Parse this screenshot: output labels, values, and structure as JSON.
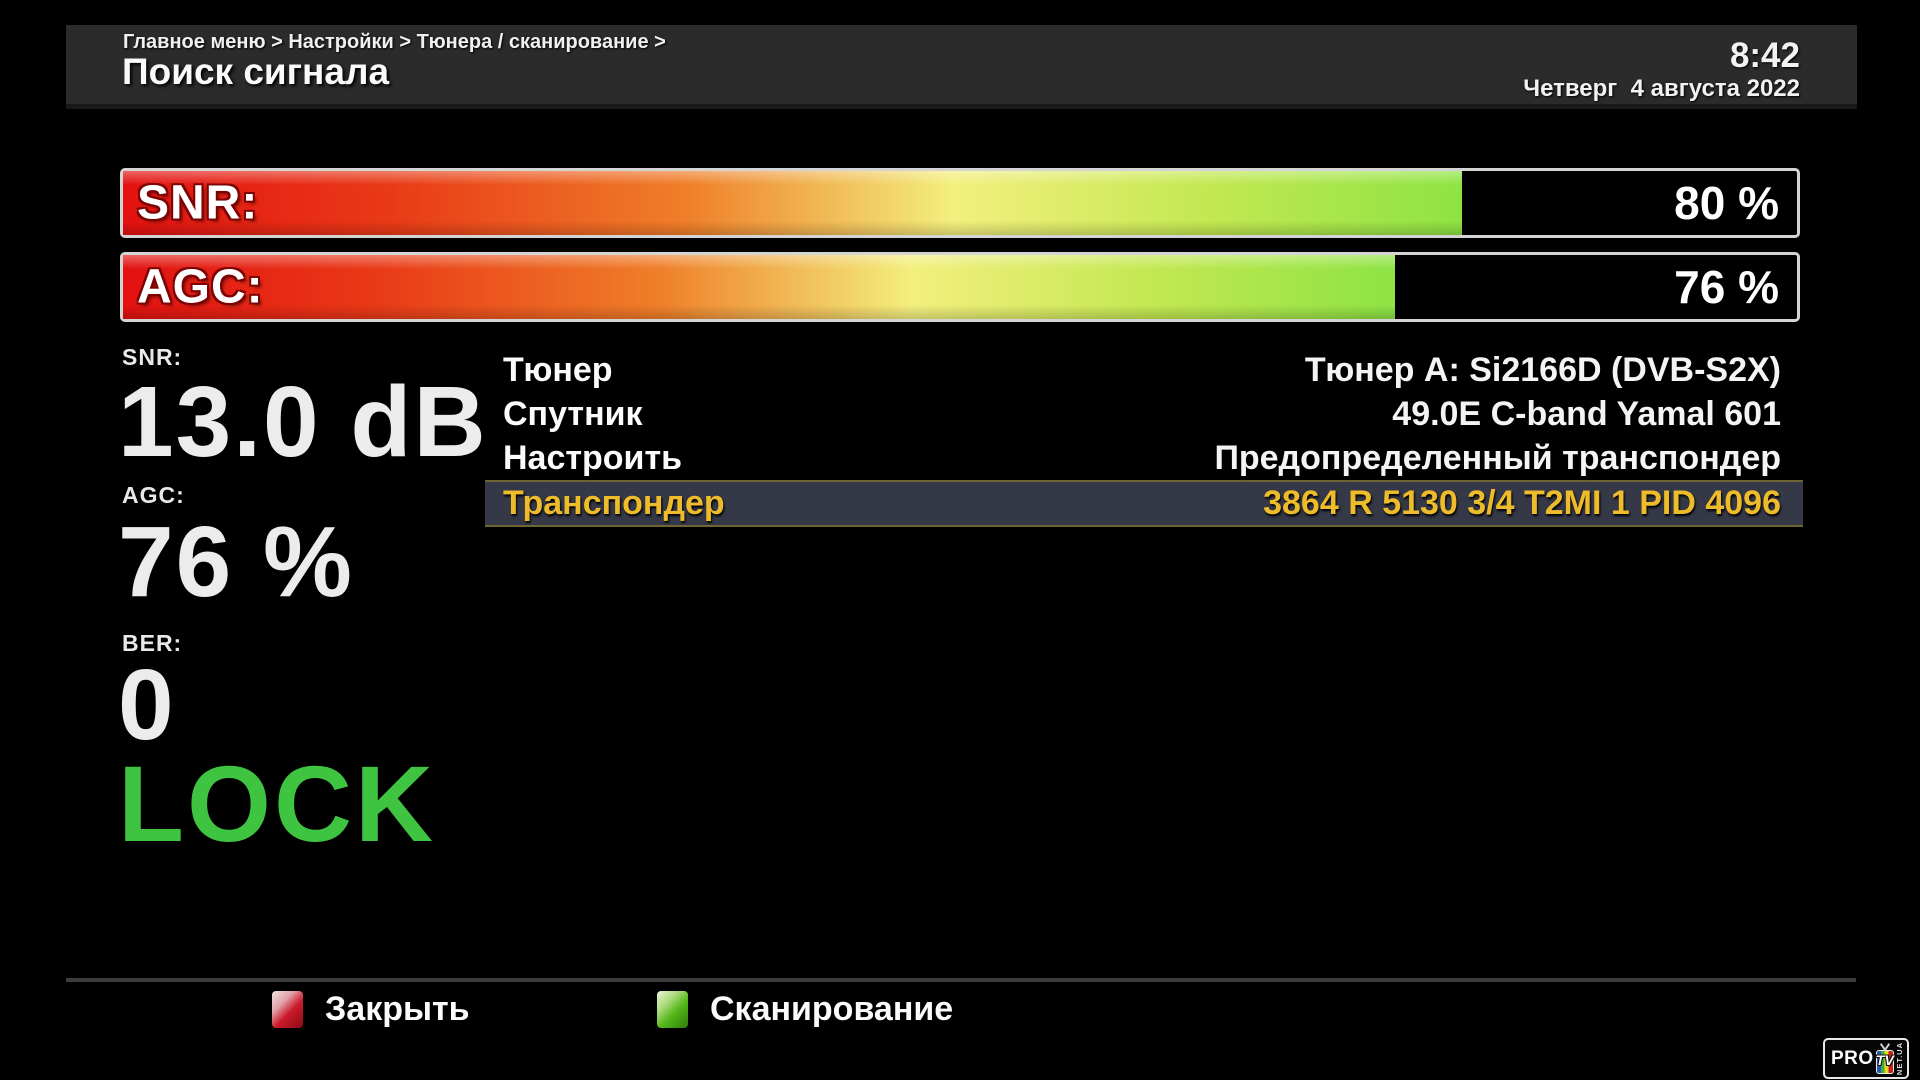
{
  "header": {
    "breadcrumb": "Главное меню > Настройки > Тюнера / сканирование >",
    "title": "Поиск сигнала",
    "time": "8:42",
    "date": "Четверг  4 августа 2022"
  },
  "gauges": {
    "snr": {
      "label": "SNR:",
      "percent": 80,
      "value_text": "80 %"
    },
    "agc": {
      "label": "AGC:",
      "percent": 76,
      "value_text": "76 %"
    }
  },
  "readings": {
    "snr": {
      "label": "SNR:",
      "value": "13.0 dB"
    },
    "agc": {
      "label": "AGC:",
      "value": "76 %"
    },
    "ber": {
      "label": "BER:",
      "value": "0"
    }
  },
  "lock_status": "LOCK",
  "settings": [
    {
      "label": "Тюнер",
      "value": "Тюнер A: Si2166D (DVB-S2X)",
      "selected": false
    },
    {
      "label": "Спутник",
      "value": "49.0E C-band Yamal 601",
      "selected": false
    },
    {
      "label": "Настроить",
      "value": "Предопределенный транспондер",
      "selected": false
    },
    {
      "label": "Транспондер",
      "value": "3864 R 5130 3/4 T2MI 1 PID 4096",
      "selected": true
    }
  ],
  "footer": {
    "close_label": "Закрыть",
    "scan_label": "Сканирование"
  },
  "logo": {
    "pro": "PRO",
    "tv": "TV",
    "net": "NET.UA"
  },
  "colors": {
    "lock_green": "#3fc441",
    "selected_row_bg": "#353846",
    "selected_row_border": "#6e6535",
    "selected_text_gold": "#eebc2a",
    "gauge_gradient_start": "#e31111",
    "gauge_gradient_end": "#8ee344",
    "red_key": "#cb1a29",
    "green_key": "#55b71b"
  }
}
